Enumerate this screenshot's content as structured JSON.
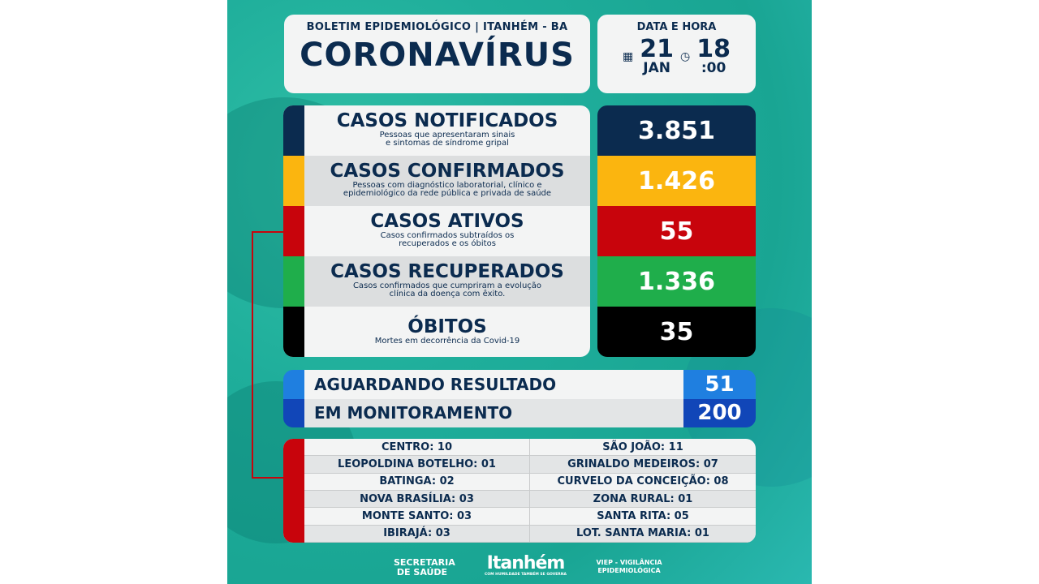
{
  "header": {
    "subtitle": "BOLETIM EPIDEMIOLÓGICO | ITANHÉM - BA",
    "title": "CORONAVÍRUS"
  },
  "date": {
    "label": "DATA E HORA",
    "day": "21",
    "month": "JAN",
    "hour": "18",
    "minutes": ":00"
  },
  "stats": [
    {
      "title": "CASOS NOTIFICADOS",
      "desc": "Pessoas que apresentaram sinais e sintomas de síndrome gripal",
      "value": "3.851",
      "color": "#0b2b4f"
    },
    {
      "title": "CASOS CONFIRMADOS",
      "desc": "Pessoas com diagnóstico laboratorial, clínico e epidemiológico da rede pública e privada de saúde",
      "value": "1.426",
      "color": "#fbb50f"
    },
    {
      "title": "CASOS ATIVOS",
      "desc": "Casos confirmados subtraídos os recuperados e os óbitos",
      "value": "55",
      "color": "#c8040c"
    },
    {
      "title": "CASOS RECUPERADOS",
      "desc": "Casos confirmados que cumpriram a evolução clínica da doença com êxito.",
      "value": "1.336",
      "color": "#1fae4b"
    },
    {
      "title": "ÓBITOS",
      "desc": "Mortes em decorrência da Covid-19",
      "value": "35",
      "color": "#000000"
    }
  ],
  "waiting": [
    {
      "label": "AGUARDANDO RESULTADO",
      "value": "51",
      "color": "#1f7fe0"
    },
    {
      "label": "EM MONITORAMENTO",
      "value": "200",
      "color": "#1146b8"
    }
  ],
  "neighborhoods": [
    "CENTRO: 10",
    "SÃO JOÃO: 11",
    "LEOPOLDINA BOTELHO: 01",
    "GRINALDO MEDEIROS: 07",
    "BATINGA: 02",
    "CURVELO DA CONCEIÇÃO: 08",
    "NOVA BRASÍLIA: 03",
    "ZONA RURAL: 01",
    "MONTE SANTO: 03",
    "SANTA RITA: 05",
    "IBIRAJÁ: 03",
    "LOT. SANTA MARIA: 01"
  ],
  "footer": {
    "left": "SECRETARIA DE SAÚDE",
    "logo": "Itanhém",
    "logo_tag": "COM HUMILDADE TAMBÉM SE GOVERNA",
    "right": "VIEP - VIGILÂNCIA EPIDEMIOLÓGICA"
  }
}
